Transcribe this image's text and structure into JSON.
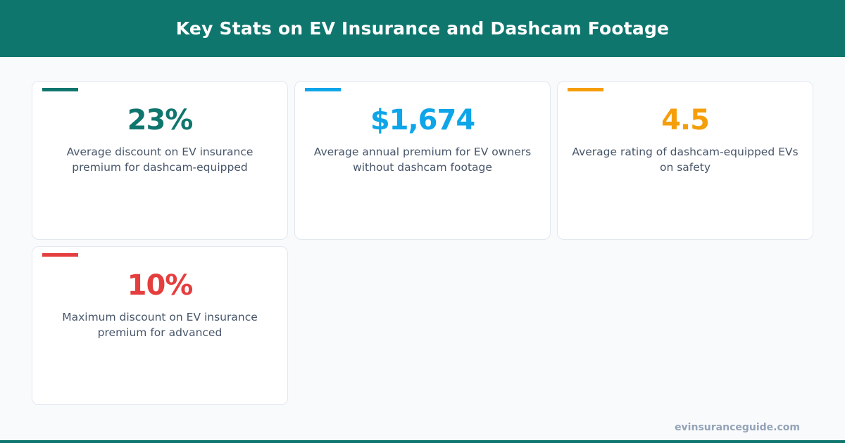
{
  "title": "Key Stats on EV Insurance and Dashcam Footage",
  "stats": [
    {
      "value": "23%",
      "label": "Average discount on EV insurance premium for dashcam-equipped",
      "color": "#0f766e"
    },
    {
      "value": "$1,674",
      "label": "Average annual premium for EV owners without dashcam footage",
      "color": "#0ea5e9"
    },
    {
      "value": "4.5",
      "label": "Average rating of dashcam-equipped EVs on safety",
      "color": "#f59e0b"
    },
    {
      "value": "10%",
      "label": "Maximum discount on EV insurance premium for advanced",
      "color": "#e53e3e"
    }
  ],
  "footer": "evinsuranceguide.com"
}
